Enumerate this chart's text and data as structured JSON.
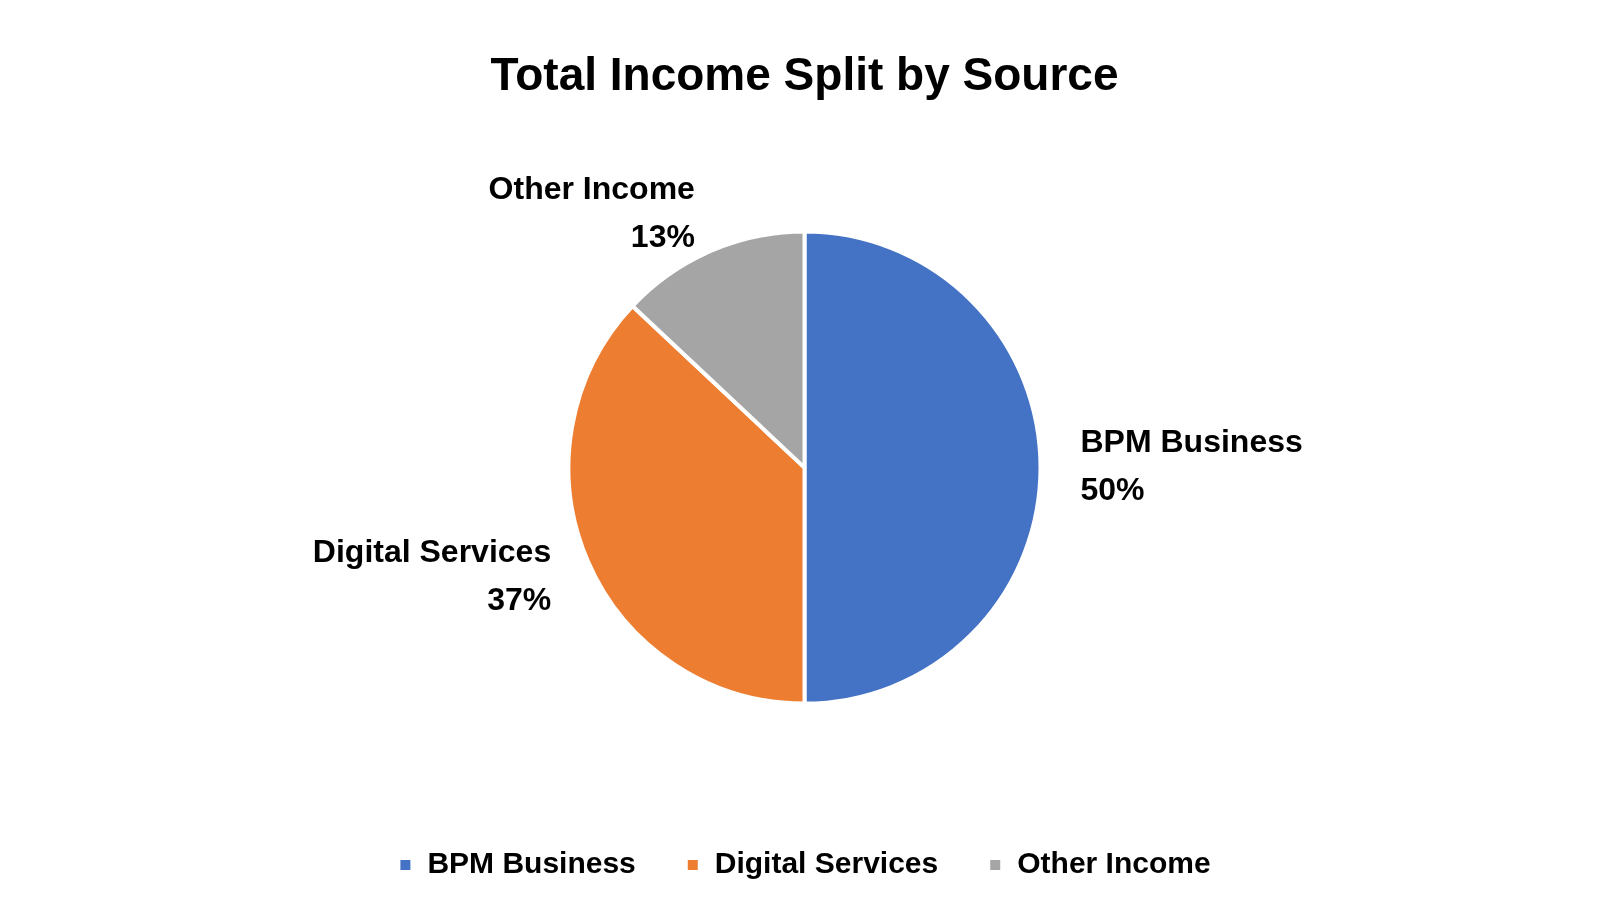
{
  "chart_data": {
    "type": "pie",
    "title": "Total Income Split by Source",
    "categories": [
      "BPM Business",
      "Digital Services",
      "Other Income"
    ],
    "values": [
      50,
      37,
      13
    ],
    "colors": [
      "#4472c4",
      "#ed7d31",
      "#a5a5a5"
    ],
    "value_labels": [
      "50%",
      "37%",
      "13%"
    ],
    "legend": "bottom"
  }
}
